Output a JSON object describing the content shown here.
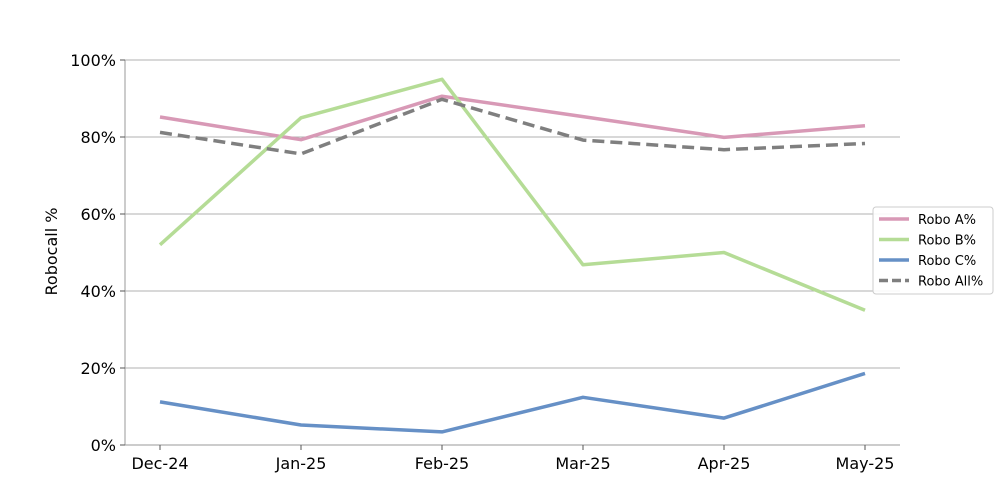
{
  "chart_data": {
    "type": "line",
    "title": "",
    "xlabel": "",
    "ylabel": "Robocall %",
    "categories": [
      "Dec-24",
      "Jan-25",
      "Feb-25",
      "Mar-25",
      "Apr-25",
      "May-25"
    ],
    "ylim": [
      0,
      100
    ],
    "yticks": [
      0,
      20,
      40,
      60,
      80,
      100
    ],
    "ytick_labels": [
      "0%",
      "20%",
      "40%",
      "60%",
      "80%",
      "100%"
    ],
    "grid": "horizontal",
    "legend_position": "right",
    "series": [
      {
        "name": "Robo A%",
        "values": [
          85.2,
          79.3,
          90.6,
          85.3,
          79.9,
          82.9
        ],
        "color": "#d899b6",
        "dash": "solid"
      },
      {
        "name": "Robo B%",
        "values": [
          52.0,
          85.0,
          95.0,
          46.8,
          50.0,
          35.0
        ],
        "color": "#b5dc96",
        "dash": "solid"
      },
      {
        "name": "Robo C%",
        "values": [
          11.2,
          5.2,
          3.4,
          12.4,
          7.0,
          18.6
        ],
        "color": "#6690c6",
        "dash": "solid"
      },
      {
        "name": "Robo All%",
        "values": [
          81.2,
          75.6,
          89.8,
          79.2,
          76.7,
          78.3
        ],
        "color": "#7f7f7f",
        "dash": "dashed"
      }
    ]
  }
}
